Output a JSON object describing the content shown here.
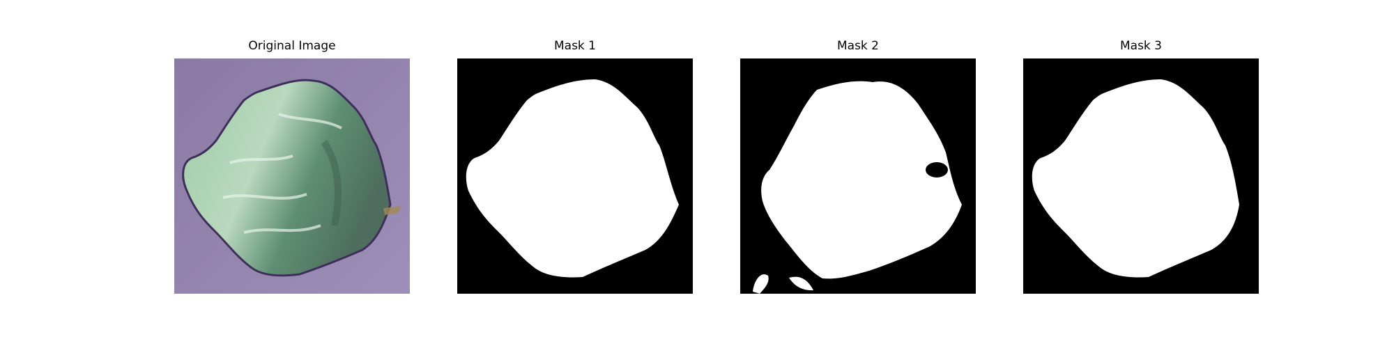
{
  "figure": {
    "panels": [
      {
        "title": "Original Image",
        "kind": "photo"
      },
      {
        "title": "Mask 1",
        "kind": "mask"
      },
      {
        "title": "Mask 2",
        "kind": "mask"
      },
      {
        "title": "Mask 3",
        "kind": "mask"
      }
    ]
  },
  "colors": {
    "background_photo": "#8f80a8",
    "leaf_light": "#b9d8bd",
    "leaf_green": "#4f9a6a",
    "leaf_dark": "#4e6d5e",
    "mask_fg": "#ffffff",
    "mask_bg": "#000000"
  }
}
